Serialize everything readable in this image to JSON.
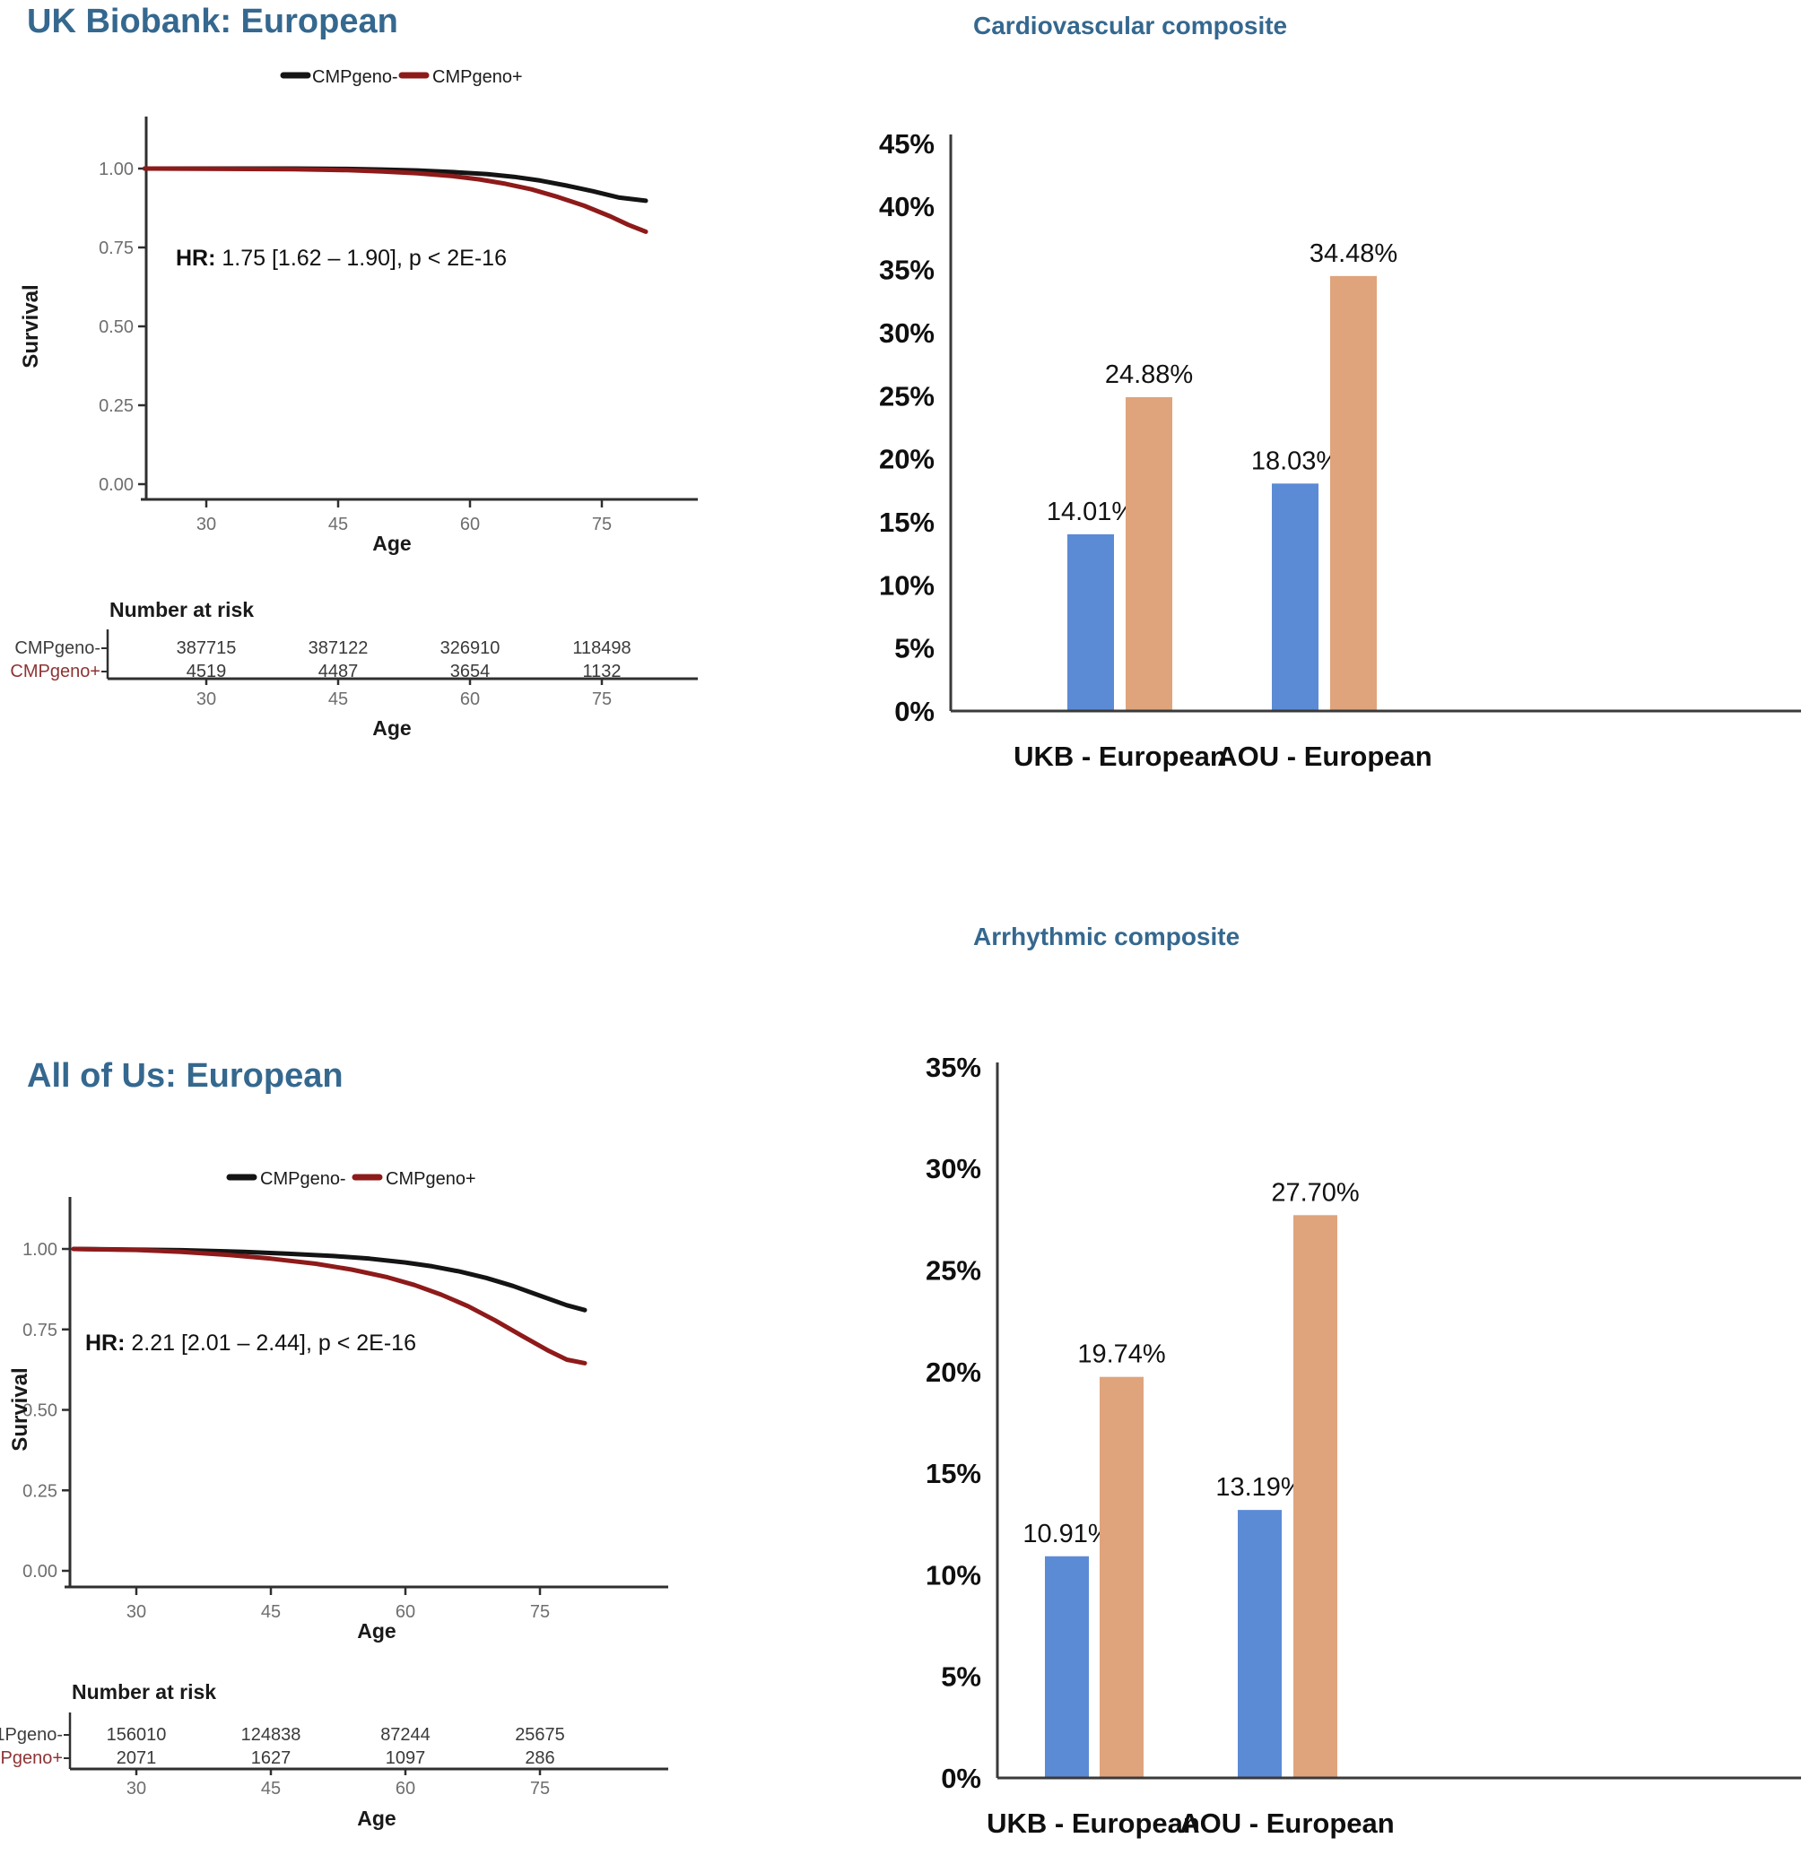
{
  "palette": {
    "heading_blue": "#35688f",
    "km_negative_black": "#141414",
    "km_positive_red": "#8e1a1a",
    "bar_blue": "#5b8bd5",
    "bar_tan": "#dfa47c",
    "tick_gray": "#6e6e6e",
    "axis_dark": "#2f2f2f"
  },
  "panels": {
    "ukb_km": {
      "title": "UK Biobank: European"
    },
    "cardio_bar": {
      "title": "Cardiovascular composite"
    },
    "aou_km": {
      "title": "All of Us: European"
    },
    "arrhythmic_bar": {
      "title": "Arrhythmic composite"
    }
  },
  "chart_data": [
    {
      "id": "ukb-km",
      "type": "line",
      "subtype": "kaplan-meier-survival",
      "title": "UK Biobank: European",
      "xlabel": "Age",
      "ylabel": "Survival",
      "xticks": [
        30,
        45,
        60,
        75
      ],
      "yticks": [
        "1.00",
        "0.75",
        "0.50",
        "0.25",
        "0.00"
      ],
      "xlim": [
        23,
        85
      ],
      "ylim": [
        0,
        1.05
      ],
      "grid": false,
      "legend_position": "top-center",
      "annotation": {
        "bold": "HR:",
        "text": "  1.75 [1.62 – 1.90], p < 2E-16"
      },
      "series": [
        {
          "name": "CMPgeno-",
          "color": "#141414",
          "points": [
            [
              23,
              1.0
            ],
            [
              40,
              1.0
            ],
            [
              46,
              0.999
            ],
            [
              50,
              0.997
            ],
            [
              54,
              0.994
            ],
            [
              58,
              0.989
            ],
            [
              62,
              0.982
            ],
            [
              65,
              0.974
            ],
            [
              68,
              0.962
            ],
            [
              71,
              0.946
            ],
            [
              74,
              0.928
            ],
            [
              77,
              0.908
            ],
            [
              80,
              0.898
            ]
          ]
        },
        {
          "name": "CMPgeno+",
          "color": "#8e1a1a",
          "points": [
            [
              23,
              1.0
            ],
            [
              40,
              0.998
            ],
            [
              46,
              0.995
            ],
            [
              50,
              0.991
            ],
            [
              54,
              0.985
            ],
            [
              58,
              0.976
            ],
            [
              61,
              0.966
            ],
            [
              64,
              0.952
            ],
            [
              67,
              0.934
            ],
            [
              70,
              0.91
            ],
            [
              73,
              0.882
            ],
            [
              76,
              0.848
            ],
            [
              78,
              0.822
            ],
            [
              80,
              0.8
            ]
          ]
        }
      ],
      "risk_table": {
        "title": "Number at risk",
        "xlabel": "Age",
        "ages": [
          30,
          45,
          60,
          75
        ],
        "rows": [
          {
            "label": "CMPgeno-",
            "label_color": "#3d3d3d",
            "values": [
              "387715",
              "387122",
              "326910",
              "118498"
            ]
          },
          {
            "label": "CMPgeno+",
            "label_color": "#8e3434",
            "values": [
              "4519",
              "4487",
              "3654",
              "1132"
            ]
          }
        ]
      }
    },
    {
      "id": "aou-km",
      "type": "line",
      "subtype": "kaplan-meier-survival",
      "title": "All of Us: European",
      "xlabel": "Age",
      "ylabel": "Survival",
      "xticks": [
        30,
        45,
        60,
        75
      ],
      "yticks": [
        "1.00",
        "0.75",
        "0.50",
        "0.25",
        "0.00"
      ],
      "xlim": [
        23,
        85
      ],
      "ylim": [
        0,
        1.05
      ],
      "grid": false,
      "legend_position": "top-center",
      "annotation": {
        "bold": "HR:",
        "text": "  2.21 [2.01 – 2.44], p < 2E-16"
      },
      "series": [
        {
          "name": "CMPgeno-",
          "color": "#141414",
          "points": [
            [
              23,
              1.0
            ],
            [
              35,
              0.996
            ],
            [
              42,
              0.991
            ],
            [
              47,
              0.985
            ],
            [
              52,
              0.978
            ],
            [
              56,
              0.97
            ],
            [
              60,
              0.958
            ],
            [
              63,
              0.946
            ],
            [
              66,
              0.93
            ],
            [
              69,
              0.91
            ],
            [
              72,
              0.885
            ],
            [
              75,
              0.855
            ],
            [
              78,
              0.825
            ],
            [
              80,
              0.81
            ]
          ]
        },
        {
          "name": "CMPgeno+",
          "color": "#8e1a1a",
          "points": [
            [
              23,
              1.0
            ],
            [
              30,
              0.997
            ],
            [
              35,
              0.991
            ],
            [
              40,
              0.982
            ],
            [
              45,
              0.97
            ],
            [
              50,
              0.954
            ],
            [
              54,
              0.936
            ],
            [
              58,
              0.912
            ],
            [
              61,
              0.888
            ],
            [
              64,
              0.858
            ],
            [
              67,
              0.822
            ],
            [
              70,
              0.778
            ],
            [
              73,
              0.73
            ],
            [
              76,
              0.683
            ],
            [
              78,
              0.656
            ],
            [
              80,
              0.645
            ]
          ]
        }
      ],
      "risk_table": {
        "title": "Number at risk",
        "xlabel": "Age",
        "ages": [
          30,
          45,
          60,
          75
        ],
        "rows": [
          {
            "label": "1Pgeno-",
            "label_color": "#3d3d3d",
            "values": [
              "156010",
              "124838",
              "87244",
              "25675"
            ]
          },
          {
            "label": "Pgeno+",
            "label_color": "#8e3434",
            "values": [
              "2071",
              "1627",
              "1097",
              "286"
            ]
          }
        ]
      }
    },
    {
      "id": "cardio-bar",
      "type": "bar",
      "title": "Cardiovascular composite",
      "categories": [
        "UKB - European",
        "AOU - European"
      ],
      "series": [
        {
          "name": "blue",
          "color": "#5b8bd5",
          "values": [
            14.01,
            18.03
          ],
          "labels": [
            "14.01%",
            "18.03%"
          ]
        },
        {
          "name": "orange",
          "color": "#dfa47c",
          "values": [
            24.88,
            34.48
          ],
          "labels": [
            "24.88%",
            "34.48%"
          ]
        }
      ],
      "ylim": [
        0,
        45
      ],
      "ytick_step": 5,
      "ytick_suffix": "%",
      "grid": false,
      "legend": "none"
    },
    {
      "id": "arr-bar",
      "type": "bar",
      "title": "Arrhythmic composite",
      "categories": [
        "UKB - European",
        "AOU - European"
      ],
      "series": [
        {
          "name": "blue",
          "color": "#5b8bd5",
          "values": [
            10.91,
            13.19
          ],
          "labels": [
            "10.91%",
            "13.19%"
          ]
        },
        {
          "name": "orange",
          "color": "#dfa47c",
          "values": [
            19.74,
            27.7
          ],
          "labels": [
            "19.74%",
            "27.70%"
          ]
        }
      ],
      "ylim": [
        0,
        35
      ],
      "ytick_step": 5,
      "ytick_suffix": "%",
      "grid": false,
      "legend": "none"
    }
  ]
}
